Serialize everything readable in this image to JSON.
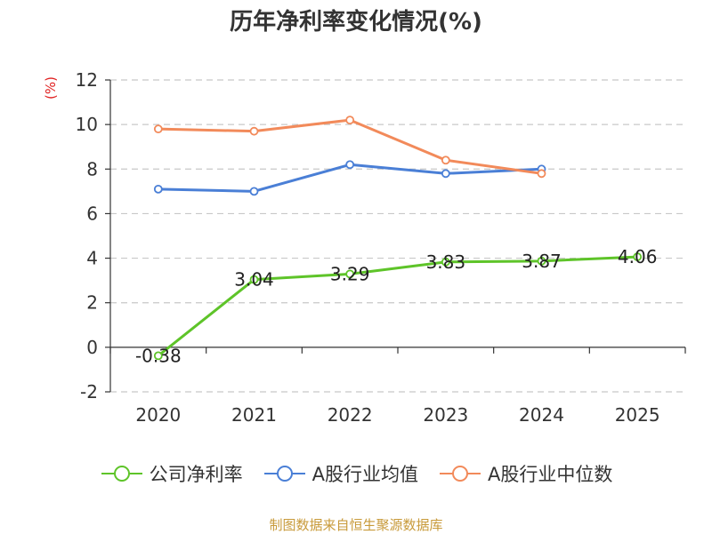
{
  "title": "历年净利率变化情况(%)",
  "unit_label": "(%)",
  "source": "制图数据来自恒生聚源数据库",
  "colors": {
    "company": "#5ec429",
    "industry_avg": "#4a7fd6",
    "industry_median": "#f28a5a",
    "grid": "#c8c8c8",
    "axis": "#333333"
  },
  "chart_data": {
    "type": "line",
    "title": "历年净利率变化情况(%)",
    "xlabel": "",
    "ylabel": "(%)",
    "categories": [
      "2020",
      "2021",
      "2022",
      "2023",
      "2024",
      "2025"
    ],
    "ylim": [
      -2,
      12
    ],
    "yticks": [
      -2,
      0,
      2,
      4,
      6,
      8,
      10,
      12
    ],
    "grid": true,
    "legend_position": "bottom",
    "series": [
      {
        "name": "公司净利率",
        "values": [
          -0.38,
          3.04,
          3.29,
          3.83,
          3.87,
          4.06
        ],
        "labels": [
          "-0.38",
          "3.04",
          "3.29",
          "3.83",
          "3.87",
          "4.06"
        ],
        "color_key": "company"
      },
      {
        "name": "A股行业均值",
        "values": [
          7.1,
          7.0,
          8.2,
          7.8,
          8.0,
          null
        ],
        "color_key": "industry_avg"
      },
      {
        "name": "A股行业中位数",
        "values": [
          9.8,
          9.7,
          10.2,
          8.4,
          7.8,
          null
        ],
        "color_key": "industry_median"
      }
    ]
  }
}
